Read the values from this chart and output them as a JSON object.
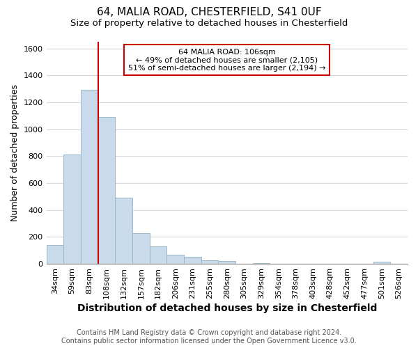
{
  "title1": "64, MALIA ROAD, CHESTERFIELD, S41 0UF",
  "title2": "Size of property relative to detached houses in Chesterfield",
  "xlabel": "Distribution of detached houses by size in Chesterfield",
  "ylabel": "Number of detached properties",
  "categories": [
    "34sqm",
    "59sqm",
    "83sqm",
    "108sqm",
    "132sqm",
    "157sqm",
    "182sqm",
    "206sqm",
    "231sqm",
    "255sqm",
    "280sqm",
    "305sqm",
    "329sqm",
    "354sqm",
    "378sqm",
    "403sqm",
    "428sqm",
    "452sqm",
    "477sqm",
    "501sqm",
    "526sqm"
  ],
  "values": [
    140,
    810,
    1295,
    1090,
    490,
    230,
    130,
    70,
    50,
    25,
    20,
    0,
    5,
    0,
    0,
    0,
    0,
    0,
    0,
    15,
    0
  ],
  "bar_color": "#c9daea",
  "bar_edge_color": "#9ab8cc",
  "vline_x": 2.5,
  "vline_color": "#cc0000",
  "annotation_box_color": "#cc0000",
  "annotation_line1": "64 MALIA ROAD: 106sqm",
  "annotation_line2": "← 49% of detached houses are smaller (2,105)",
  "annotation_line3": "51% of semi-detached houses are larger (2,194) →",
  "ylim": [
    0,
    1650
  ],
  "yticks": [
    0,
    200,
    400,
    600,
    800,
    1000,
    1200,
    1400,
    1600
  ],
  "footer1": "Contains HM Land Registry data © Crown copyright and database right 2024.",
  "footer2": "Contains public sector information licensed under the Open Government Licence v3.0.",
  "bg_color": "#ffffff",
  "plot_bg_color": "#ffffff",
  "grid_color": "#d0d8e0",
  "title1_fontsize": 11,
  "title2_fontsize": 9.5,
  "xlabel_fontsize": 10,
  "ylabel_fontsize": 9,
  "footer_fontsize": 7.0,
  "tick_fontsize": 8
}
